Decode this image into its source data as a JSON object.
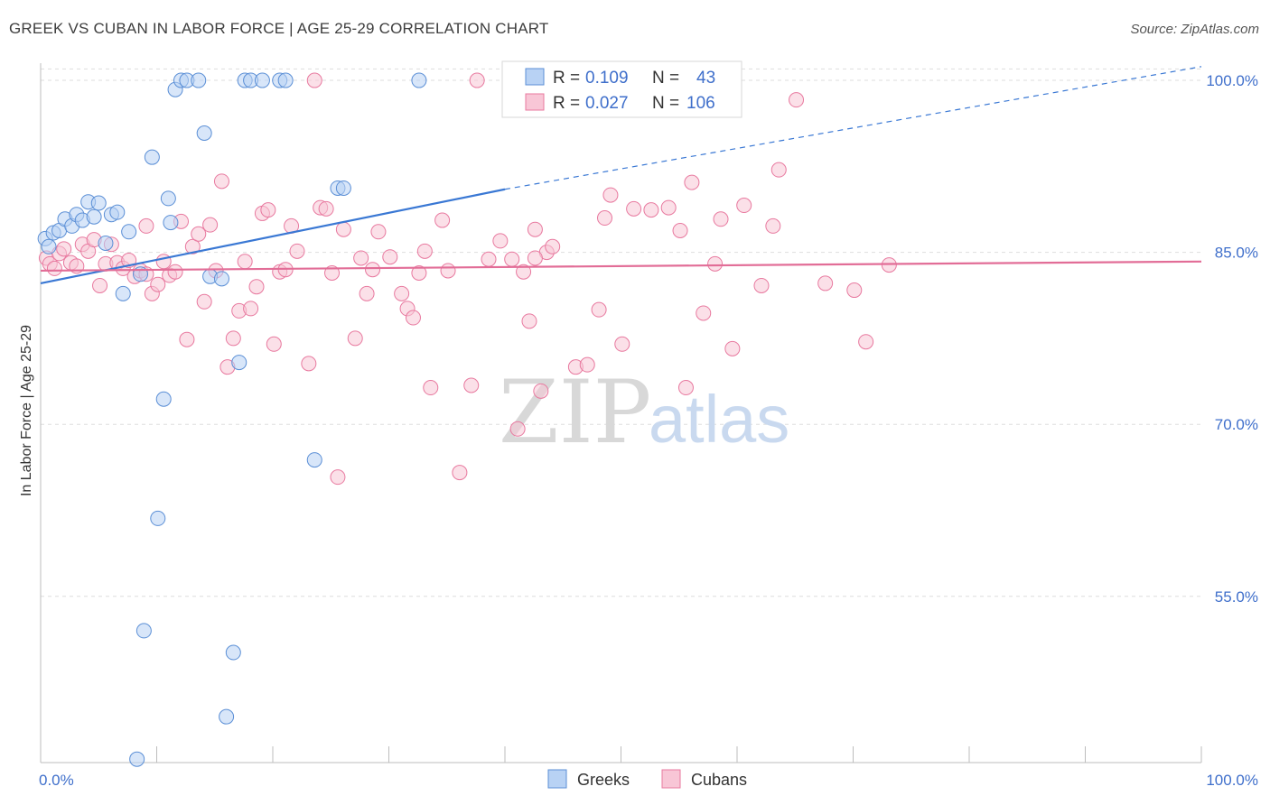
{
  "title": "GREEK VS CUBAN IN LABOR FORCE | AGE 25-29 CORRELATION CHART",
  "source": "Source: ZipAtlas.com",
  "watermark": {
    "zip": "ZIP",
    "atlas": "atlas"
  },
  "colors": {
    "greeks": "#5b8fd6",
    "greeks_fill": "#b8d2f4",
    "cubans": "#e8799f",
    "cubans_fill": "#f8c6d6",
    "tick_label": "#3f6fcb"
  },
  "legend": {
    "greeks": {
      "r_label": "R =",
      "r_value": "0.109",
      "n_label": "N =",
      "n_value": "43"
    },
    "cubans": {
      "r_label": "R =",
      "r_value": "0.027",
      "n_label": "N =",
      "n_value": "106"
    }
  },
  "bottom_legend": [
    "Greeks",
    "Cubans"
  ],
  "chart_data": {
    "type": "scatter",
    "title": "GREEK VS CUBAN IN LABOR FORCE | AGE 25-29 CORRELATION CHART",
    "xlabel": "",
    "ylabel": "In Labor Force | Age 25-29",
    "xlim": [
      0,
      100
    ],
    "ylim": [
      40.5,
      101.5
    ],
    "x_ticks_labels": [
      "0.0%",
      "100.0%"
    ],
    "y_ticks": [
      55,
      70,
      85,
      100
    ],
    "y_ticks_labels": [
      "55.0%",
      "70.0%",
      "85.0%",
      "100.0%"
    ],
    "grid": true,
    "legend_position": "top-center",
    "series": [
      {
        "name": "Greeks",
        "trend": {
          "x": [
            0,
            40
          ],
          "y": [
            82.3,
            90.5
          ],
          "dashed_to": {
            "x": 100,
            "y": 101.2
          }
        },
        "points": [
          [
            0.4,
            86.2
          ],
          [
            0.7,
            85.5
          ],
          [
            1.1,
            86.7
          ],
          [
            1.6,
            86.9
          ],
          [
            2.1,
            87.9
          ],
          [
            2.7,
            87.3
          ],
          [
            3.1,
            88.3
          ],
          [
            3.6,
            87.8
          ],
          [
            4.1,
            89.4
          ],
          [
            4.6,
            88.1
          ],
          [
            5.0,
            89.3
          ],
          [
            5.6,
            85.8
          ],
          [
            6.1,
            88.3
          ],
          [
            6.6,
            88.5
          ],
          [
            7.1,
            81.4
          ],
          [
            7.6,
            86.8
          ],
          [
            8.6,
            83.1
          ],
          [
            9.6,
            93.3
          ],
          [
            10.1,
            61.8
          ],
          [
            10.6,
            72.2
          ],
          [
            11.0,
            89.7
          ],
          [
            11.2,
            87.6
          ],
          [
            11.6,
            99.2
          ],
          [
            12.1,
            100.0
          ],
          [
            12.6,
            100.0
          ],
          [
            13.6,
            100.0
          ],
          [
            14.1,
            95.4
          ],
          [
            14.6,
            82.9
          ],
          [
            15.6,
            82.7
          ],
          [
            16.6,
            50.1
          ],
          [
            17.1,
            75.4
          ],
          [
            17.6,
            100.0
          ],
          [
            18.1,
            100.0
          ],
          [
            19.1,
            100.0
          ],
          [
            20.6,
            100.0
          ],
          [
            21.1,
            100.0
          ],
          [
            23.6,
            66.9
          ],
          [
            25.6,
            90.6
          ],
          [
            26.1,
            90.6
          ],
          [
            32.6,
            100.0
          ],
          [
            8.9,
            52.0
          ],
          [
            16.0,
            44.5
          ],
          [
            8.3,
            40.8
          ]
        ]
      },
      {
        "name": "Cubans",
        "trend": {
          "x": [
            0,
            100
          ],
          "y": [
            83.4,
            84.2
          ]
        },
        "points": [
          [
            0.5,
            84.5
          ],
          [
            0.8,
            84.0
          ],
          [
            1.2,
            83.6
          ],
          [
            1.6,
            84.9
          ],
          [
            2.0,
            85.3
          ],
          [
            2.6,
            84.1
          ],
          [
            3.1,
            83.8
          ],
          [
            3.6,
            85.7
          ],
          [
            4.1,
            85.1
          ],
          [
            4.6,
            86.1
          ],
          [
            5.1,
            82.1
          ],
          [
            5.6,
            84.0
          ],
          [
            6.1,
            85.7
          ],
          [
            6.6,
            84.1
          ],
          [
            7.1,
            83.6
          ],
          [
            7.6,
            84.3
          ],
          [
            8.1,
            82.9
          ],
          [
            8.6,
            83.4
          ],
          [
            9.1,
            87.3
          ],
          [
            9.6,
            81.4
          ],
          [
            10.1,
            82.2
          ],
          [
            10.6,
            84.2
          ],
          [
            11.1,
            83.0
          ],
          [
            11.6,
            83.3
          ],
          [
            12.1,
            87.7
          ],
          [
            12.6,
            77.4
          ],
          [
            13.1,
            85.5
          ],
          [
            13.6,
            86.6
          ],
          [
            14.1,
            80.7
          ],
          [
            14.6,
            87.4
          ],
          [
            15.1,
            83.4
          ],
          [
            15.6,
            91.2
          ],
          [
            16.1,
            75.0
          ],
          [
            16.6,
            77.5
          ],
          [
            17.1,
            79.9
          ],
          [
            17.6,
            84.2
          ],
          [
            18.1,
            80.1
          ],
          [
            18.6,
            82.0
          ],
          [
            19.1,
            88.4
          ],
          [
            19.6,
            88.7
          ],
          [
            20.1,
            77.0
          ],
          [
            20.6,
            83.3
          ],
          [
            21.1,
            83.5
          ],
          [
            21.6,
            87.3
          ],
          [
            22.1,
            85.1
          ],
          [
            23.1,
            75.3
          ],
          [
            24.1,
            88.9
          ],
          [
            24.6,
            88.8
          ],
          [
            25.1,
            83.2
          ],
          [
            25.6,
            65.4
          ],
          [
            26.1,
            87.0
          ],
          [
            27.1,
            77.5
          ],
          [
            27.6,
            84.5
          ],
          [
            28.1,
            81.4
          ],
          [
            28.6,
            83.5
          ],
          [
            29.1,
            86.8
          ],
          [
            30.1,
            84.6
          ],
          [
            31.1,
            81.4
          ],
          [
            31.6,
            80.1
          ],
          [
            32.1,
            79.3
          ],
          [
            32.6,
            83.2
          ],
          [
            33.1,
            85.1
          ],
          [
            33.6,
            73.2
          ],
          [
            34.6,
            87.8
          ],
          [
            35.1,
            83.4
          ],
          [
            36.1,
            65.8
          ],
          [
            37.1,
            73.4
          ],
          [
            38.6,
            84.4
          ],
          [
            39.6,
            86.0
          ],
          [
            40.6,
            84.4
          ],
          [
            41.1,
            69.6
          ],
          [
            41.6,
            83.3
          ],
          [
            42.1,
            79.0
          ],
          [
            42.6,
            87.0
          ],
          [
            43.1,
            72.9
          ],
          [
            43.6,
            85.0
          ],
          [
            44.1,
            85.5
          ],
          [
            46.1,
            75.0
          ],
          [
            47.1,
            75.2
          ],
          [
            48.1,
            80.0
          ],
          [
            48.6,
            88.0
          ],
          [
            49.1,
            90.0
          ],
          [
            50.1,
            77.0
          ],
          [
            51.1,
            88.8
          ],
          [
            52.6,
            88.7
          ],
          [
            54.1,
            88.9
          ],
          [
            55.1,
            86.9
          ],
          [
            55.6,
            73.2
          ],
          [
            56.1,
            91.1
          ],
          [
            57.1,
            79.7
          ],
          [
            58.1,
            84.0
          ],
          [
            58.6,
            87.9
          ],
          [
            59.6,
            76.6
          ],
          [
            60.6,
            89.1
          ],
          [
            62.1,
            82.1
          ],
          [
            63.1,
            87.3
          ],
          [
            63.6,
            92.2
          ],
          [
            65.1,
            98.3
          ],
          [
            67.6,
            82.3
          ],
          [
            70.1,
            81.7
          ],
          [
            71.1,
            77.2
          ],
          [
            73.1,
            83.9
          ],
          [
            37.6,
            100.0
          ],
          [
            23.6,
            100.0
          ],
          [
            9.1,
            83.1
          ],
          [
            42.6,
            84.5
          ]
        ]
      }
    ]
  }
}
